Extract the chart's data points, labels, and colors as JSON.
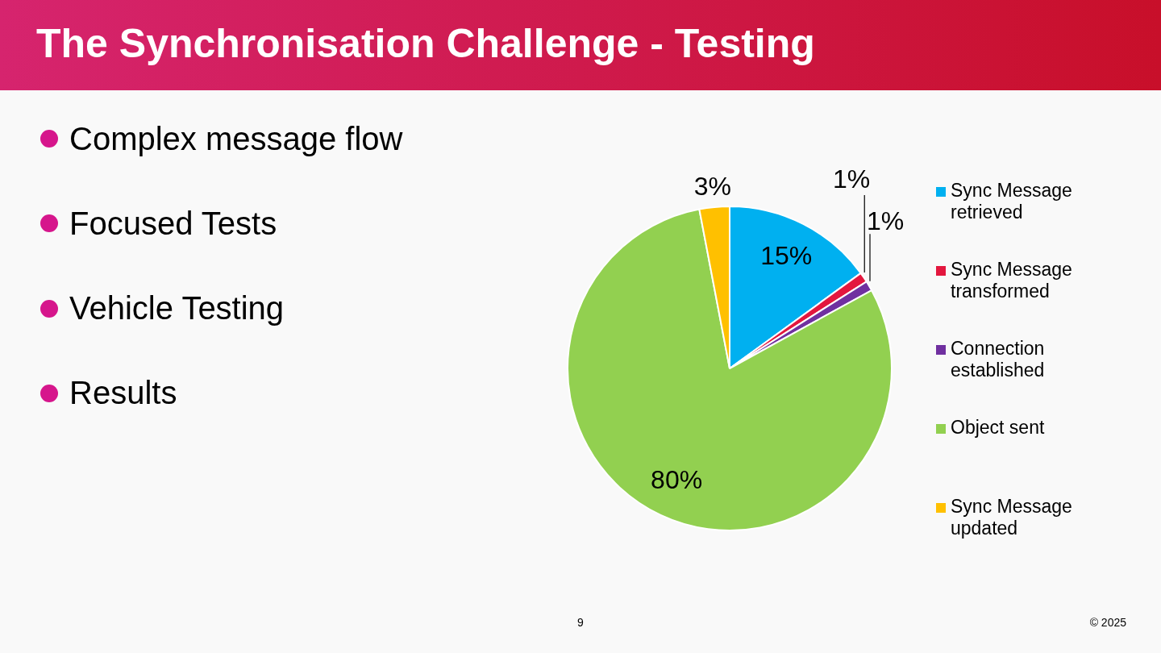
{
  "chart_data": {
    "type": "pie",
    "title": "The Synchronisation Challenge - Testing",
    "categories": [
      "Sync Message retrieved",
      "Sync Message transformed",
      "Connection established",
      "Object sent",
      "Sync Message updated"
    ],
    "values": [
      15,
      1,
      1,
      80,
      3
    ],
    "colors": [
      "#00b0f0",
      "#e3173e",
      "#7030a0",
      "#92d050",
      "#ffc000"
    ],
    "value_labels": [
      "15%",
      "1%",
      "1%",
      "80%",
      "3%"
    ],
    "legend": "right",
    "annotations": [
      "Complex message flow",
      "Focused Tests",
      "Vehicle Testing",
      "Results",
      "9",
      "© 2025"
    ]
  }
}
